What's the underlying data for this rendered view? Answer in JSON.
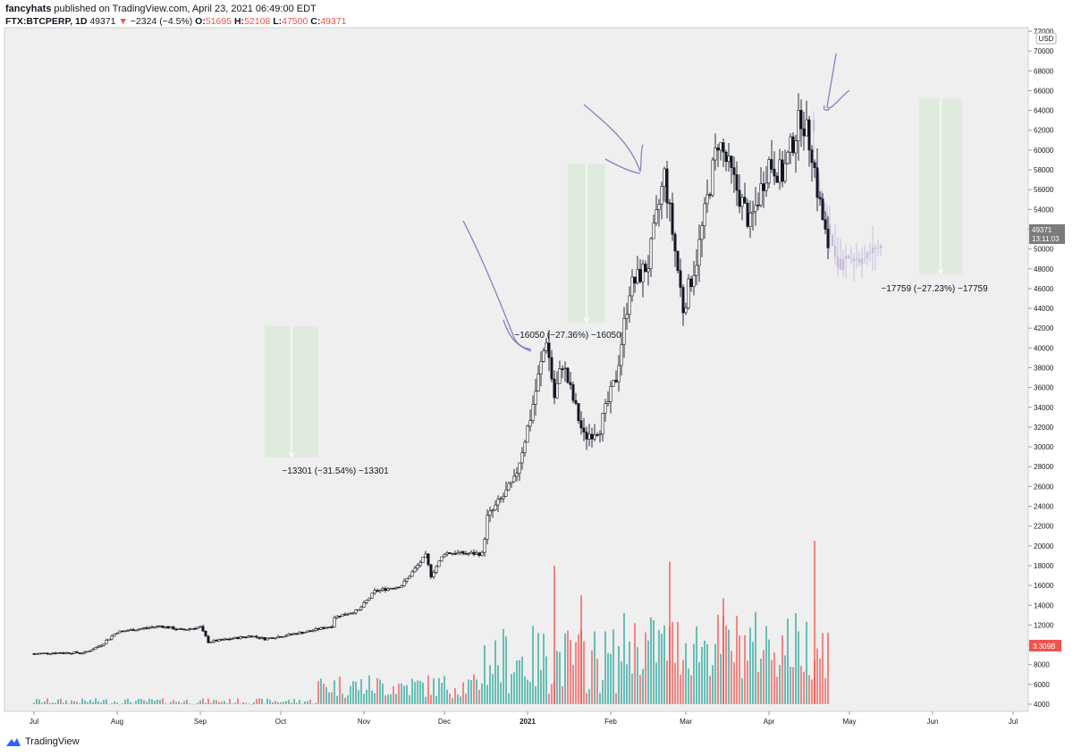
{
  "header": {
    "publisher": "fancyhats",
    "published_text": "published on TradingView.com, April 23, 2021 06:49:00 EDT",
    "symbol": "FTX:BTCPERP, 1D",
    "last": "49371",
    "change": "−2324 (−4.5%)",
    "o_label": "O:",
    "o_value": "51695",
    "h_label": "H:",
    "h_value": "52108",
    "l_label": "L:",
    "l_value": "47500",
    "c_label": "C:",
    "c_value": "49371"
  },
  "footer": {
    "brand": "TradingView"
  },
  "chart_data": {
    "type": "candlestick",
    "currency": "USD",
    "ylim": [
      3000,
      72000
    ],
    "y_ticks": [
      4000,
      6000,
      8000,
      10000,
      12000,
      14000,
      16000,
      18000,
      20000,
      22000,
      24000,
      26000,
      28000,
      30000,
      32000,
      34000,
      36000,
      38000,
      40000,
      42000,
      44000,
      46000,
      48000,
      50000,
      52000,
      54000,
      56000,
      58000,
      60000,
      62000,
      64000,
      66000,
      68000,
      70000,
      72000
    ],
    "x_ticks": [
      "Jul",
      "Aug",
      "Sep",
      "Oct",
      "Nov",
      "Dec",
      "2021",
      "Feb",
      "Mar",
      "Apr",
      "May",
      "Jun",
      "Jul"
    ],
    "last_price_label": "49371",
    "countdown_label": "13:11:03",
    "volume_label": "3.309B",
    "price_path": [
      [
        "2020-07-01",
        9100
      ],
      [
        "2020-07-10",
        9200
      ],
      [
        "2020-07-20",
        9200
      ],
      [
        "2020-07-26",
        10000
      ],
      [
        "2020-08-01",
        11300
      ],
      [
        "2020-08-17",
        11900
      ],
      [
        "2020-08-25",
        11500
      ],
      [
        "2020-09-01",
        11800
      ],
      [
        "2020-09-04",
        10300
      ],
      [
        "2020-09-20",
        10900
      ],
      [
        "2020-09-25",
        10600
      ],
      [
        "2020-10-10",
        11300
      ],
      [
        "2020-10-20",
        11900
      ],
      [
        "2020-10-21",
        12800
      ],
      [
        "2020-10-30",
        13500
      ],
      [
        "2020-11-05",
        15400
      ],
      [
        "2020-11-15",
        16000
      ],
      [
        "2020-11-24",
        19000
      ],
      [
        "2020-11-26",
        17000
      ],
      [
        "2020-12-01",
        19300
      ],
      [
        "2020-12-15",
        19200
      ],
      [
        "2020-12-17",
        22800
      ],
      [
        "2020-12-27",
        26500
      ],
      [
        "2021-01-02",
        33000
      ],
      [
        "2021-01-08",
        41000
      ],
      [
        "2021-01-11",
        35000
      ],
      [
        "2021-01-14",
        38500
      ],
      [
        "2021-01-22",
        31000
      ],
      [
        "2021-01-28",
        32000
      ],
      [
        "2021-02-03",
        37000
      ],
      [
        "2021-02-08",
        46000
      ],
      [
        "2021-02-15",
        48500
      ],
      [
        "2021-02-21",
        57500
      ],
      [
        "2021-02-28",
        44000
      ],
      [
        "2021-03-05",
        49000
      ],
      [
        "2021-03-13",
        61000
      ],
      [
        "2021-03-25",
        52500
      ],
      [
        "2021-04-01",
        58800
      ],
      [
        "2021-04-06",
        57500
      ],
      [
        "2021-04-13",
        63500
      ],
      [
        "2021-04-17",
        60000
      ],
      [
        "2021-04-19",
        56000
      ],
      [
        "2021-04-22",
        51500
      ],
      [
        "2021-04-23",
        49371
      ]
    ],
    "volume": {
      "unit_axis": "same as price axis scale",
      "peak_value": 20500,
      "last_value": "3.309B"
    },
    "annotations": [
      {
        "type": "price_range",
        "label": "−13301 (−31.54%) −13301",
        "from": 42200,
        "to": 28900,
        "dates": [
          "2020-09-25",
          "2020-10-15"
        ]
      },
      {
        "type": "price_range",
        "label": "−16050 (−27.36%) −16050",
        "from": 58600,
        "to": 42550,
        "dates": [
          "2021-01-16",
          "2021-01-30"
        ]
      },
      {
        "type": "price_range",
        "label": "−17759 (−27.23%) −17759",
        "from": 65200,
        "to": 47441,
        "dates": [
          "2021-05-27",
          "2021-06-12"
        ]
      }
    ]
  },
  "colors": {
    "up": "#26a69a",
    "down": "#ef5350",
    "candle": "#131722",
    "bg": "#efefef",
    "range_fill": "#dcebd9",
    "ghost": "#b7a8d8",
    "drawing": "#8a7fc4"
  }
}
